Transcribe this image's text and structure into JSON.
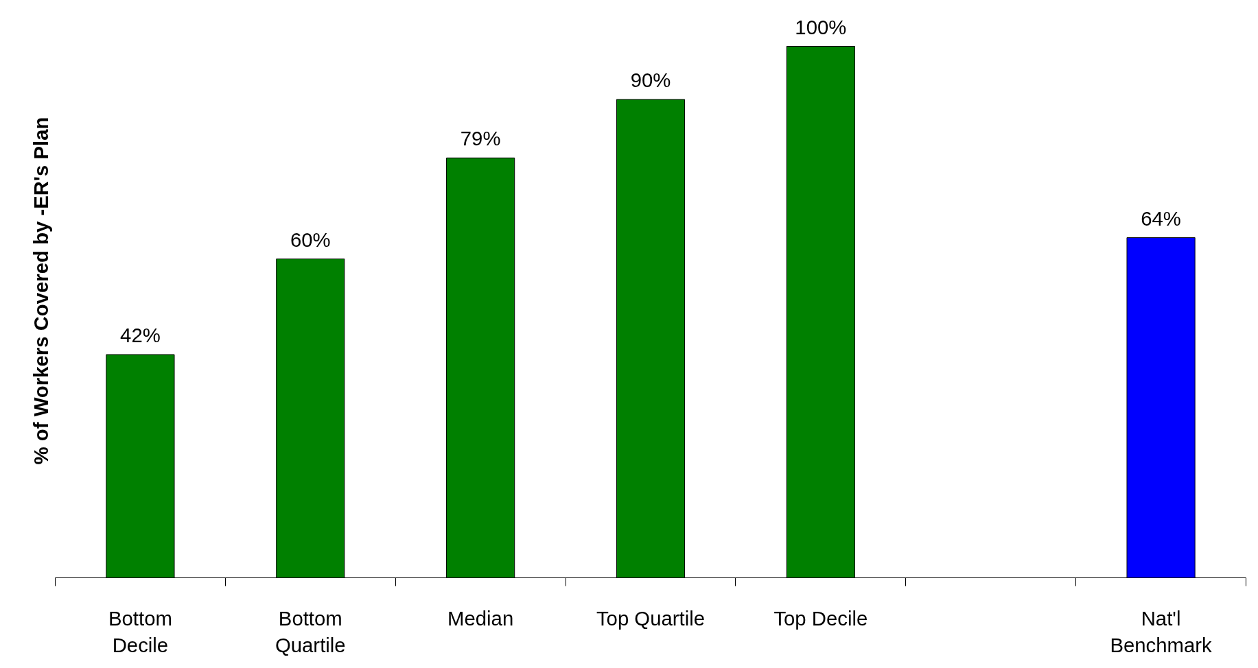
{
  "chart_data": {
    "type": "bar",
    "ylabel": "% of Workers Covered by -ER's Plan",
    "categories": [
      "Bottom\nDecile",
      "Bottom\nQuartile",
      "Median",
      "Top Quartile",
      "Top Decile",
      null,
      "Nat'l\nBenchmark"
    ],
    "values": [
      42,
      60,
      79,
      90,
      100,
      null,
      64
    ],
    "value_labels": [
      "42%",
      "60%",
      "79%",
      "90%",
      "100%",
      null,
      "64%"
    ],
    "colors": [
      "#008000",
      "#008000",
      "#008000",
      "#008000",
      "#008000",
      null,
      "#0000ff"
    ]
  }
}
